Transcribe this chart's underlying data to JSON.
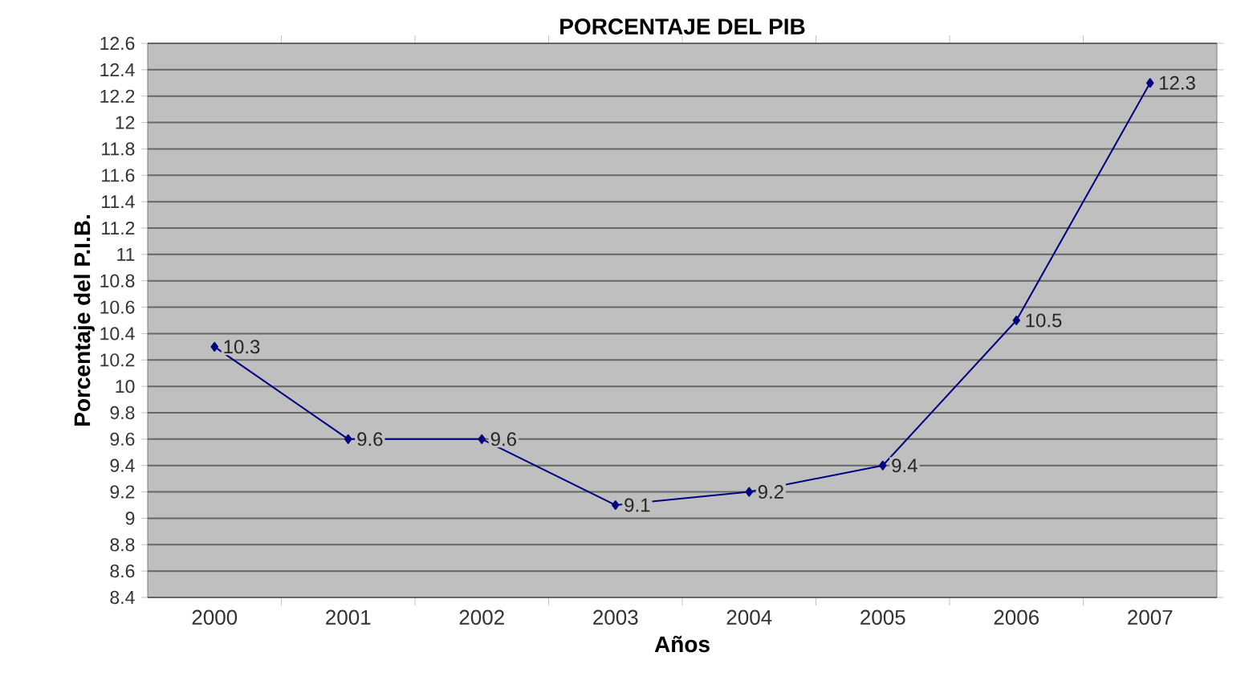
{
  "chart_data": {
    "type": "line",
    "title": "PORCENTAJE DEL PIB",
    "xlabel": "Años",
    "ylabel": "Porcentaje del P.I.B.",
    "categories": [
      "2000",
      "2001",
      "2002",
      "2003",
      "2004",
      "2005",
      "2006",
      "2007"
    ],
    "series": [
      {
        "color": "#000080",
        "values": [
          10.3,
          9.6,
          9.6,
          9.1,
          9.2,
          9.4,
          10.5,
          12.3
        ]
      }
    ],
    "ylim": [
      8.4,
      12.6
    ],
    "yticks": [
      8.4,
      8.6,
      8.8,
      9,
      9.2,
      9.4,
      9.6,
      9.8,
      10,
      10.2,
      10.4,
      10.6,
      10.8,
      11,
      11.2,
      11.4,
      11.6,
      11.8,
      12,
      12.2,
      12.4,
      12.6
    ],
    "grid": "y",
    "marker": "diamond",
    "line_style": "solid",
    "data_labels": true
  }
}
